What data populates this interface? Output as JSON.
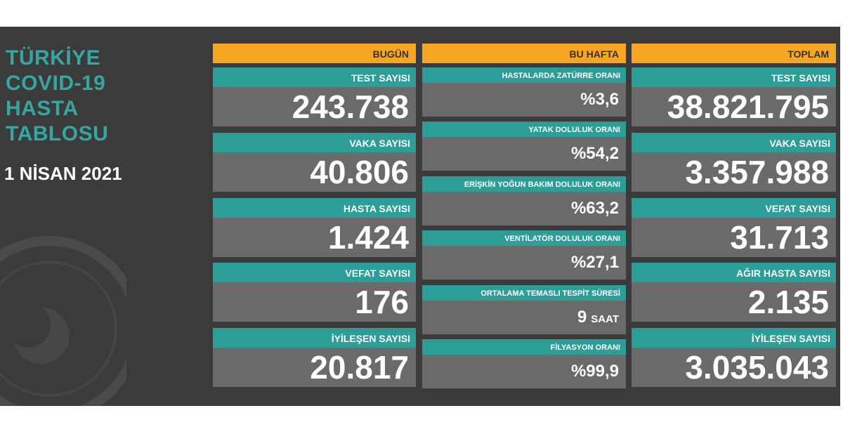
{
  "header": {
    "title_lines": [
      "TÜRKİYE",
      "COVID-19",
      "HASTA",
      "TABLOSU"
    ],
    "date": "1 NİSAN 2021"
  },
  "columns": [
    {
      "heading": "BUGÜN",
      "items": [
        {
          "label": "TEST SAYISI",
          "value": "243.738"
        },
        {
          "label": "VAKA SAYISI",
          "value": "40.806"
        },
        {
          "label": "HASTA SAYISI",
          "value": "1.424"
        },
        {
          "label": "VEFAT SAYISI",
          "value": "176"
        },
        {
          "label": "İYİLEŞEN SAYISI",
          "value": "20.817"
        }
      ]
    },
    {
      "heading": "BU HAFTA",
      "items": [
        {
          "label": "HASTALARDA ZATÜRRE ORANI",
          "value": "%3,6"
        },
        {
          "label": "YATAK DOLULUK ORANI",
          "value": "%54,2"
        },
        {
          "label": "ERİŞKİN YOĞUN BAKIM DOLULUK ORANI",
          "value": "%63,2"
        },
        {
          "label": "VENTİLATÖR DOLULUK ORANI",
          "value": "%27,1"
        },
        {
          "label": "ORTALAMA TEMASLI TESPİT SÜRESİ",
          "value": "9",
          "unit": "SAAT"
        },
        {
          "label": "FİLYASYON ORANI",
          "value": "%99,9"
        }
      ]
    },
    {
      "heading": "TOPLAM",
      "items": [
        {
          "label": "TEST SAYISI",
          "value": "38.821.795"
        },
        {
          "label": "VAKA SAYISI",
          "value": "3.357.988"
        },
        {
          "label": "VEFAT SAYISI",
          "value": "31.713"
        },
        {
          "label": "AĞIR HASTA SAYISI",
          "value": "2.135"
        },
        {
          "label": "İYİLEŞEN SAYISI",
          "value": "3.035.043"
        }
      ]
    }
  ]
}
